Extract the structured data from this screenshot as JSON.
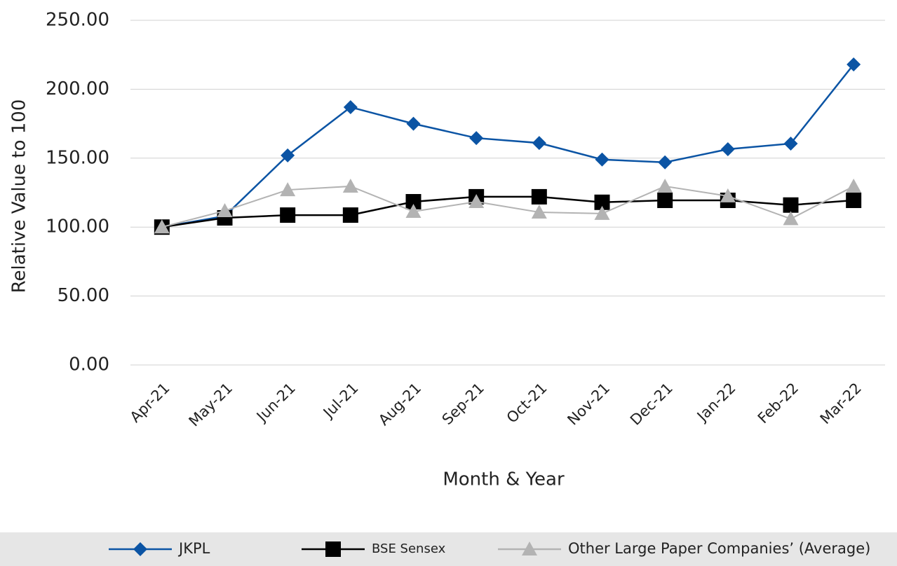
{
  "chart_data": {
    "type": "line",
    "y_label": "Relative Value to 100",
    "x_label": "Month & Year",
    "categories": [
      "Apr-21",
      "May-21",
      "Jun-21",
      "Jul-21",
      "Aug-21",
      "Sep-21",
      "Oct-21",
      "Nov-21",
      "Dec-21",
      "Jan-22",
      "Feb-22",
      "Mar-22"
    ],
    "series": [
      {
        "name": "JKPL",
        "color": "#0b54a4",
        "marker": "diamond",
        "values": [
          100,
          108,
          152,
          187,
          175,
          164.6,
          161,
          149,
          147,
          156.5,
          160.6,
          218
        ]
      },
      {
        "name": "BSE Sensex",
        "color": "#000000",
        "marker": "square",
        "values": [
          100,
          106.7,
          108.7,
          108.7,
          118.4,
          122,
          122,
          118,
          119.4,
          119.4,
          116,
          119.4
        ]
      },
      {
        "name": "Other Large Paper Companies’ (Average)",
        "color": "#b3b3b3",
        "marker": "triangle",
        "values": [
          100,
          111.8,
          127,
          129.6,
          111.3,
          118.4,
          110.8,
          109.8,
          129.6,
          122.5,
          106,
          129.6
        ]
      }
    ],
    "ylim": [
      0,
      250
    ],
    "yticks": [
      {
        "value": 0,
        "label": "0.00"
      },
      {
        "value": 50,
        "label": "50.00"
      },
      {
        "value": 100,
        "label": "100.00"
      },
      {
        "value": 150,
        "label": "150.00"
      },
      {
        "value": 200,
        "label": "200.00"
      },
      {
        "value": 250,
        "label": "250.00"
      }
    ],
    "grid": true,
    "legend": "bottom"
  }
}
